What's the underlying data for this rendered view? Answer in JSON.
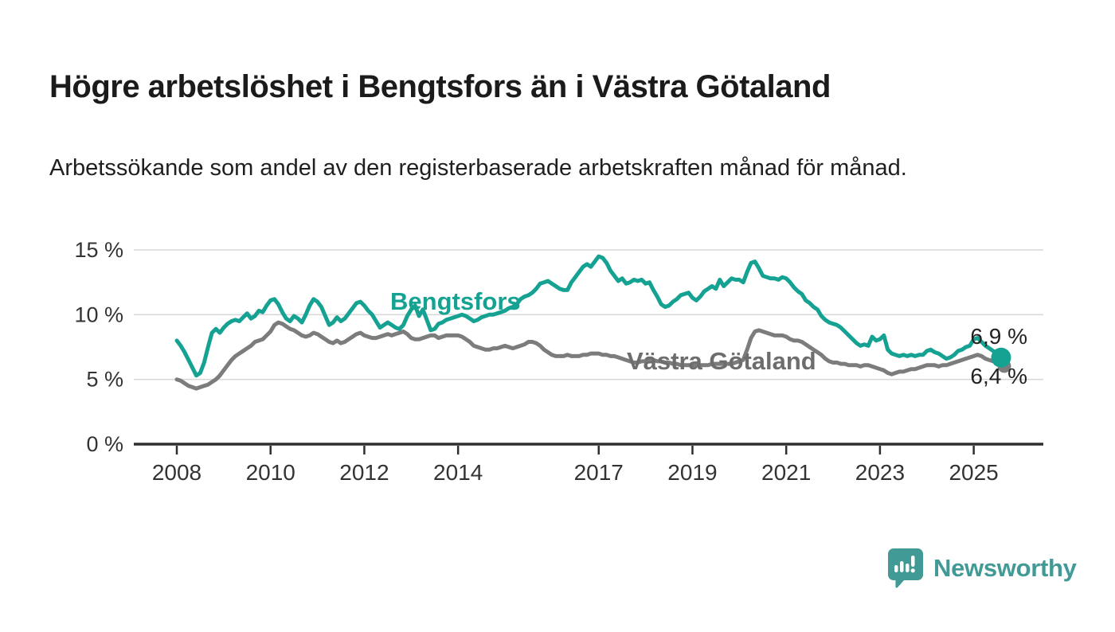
{
  "header": {
    "title": "Högre arbetslöshet i Bengtsfors än i Västra Götaland",
    "subtitle": "Arbetssökande som andel av den registerbaserade arbetskraften månad för månad."
  },
  "chart_data": {
    "type": "line",
    "title": "Högre arbetslöshet i Bengtsfors än i Västra Götaland",
    "subtitle": "Arbetssökande som andel av den registerbaserade arbetskraften månad för månad.",
    "unit": "%",
    "frequency": "monthly",
    "x_start": "2008-01",
    "x_end": "2025-08",
    "ylim": [
      0,
      15
    ],
    "grid": "horizontal",
    "x_tick_years": [
      "2008",
      "2010",
      "2012",
      "2014",
      "2017",
      "2019",
      "2021",
      "2023",
      "2025"
    ],
    "y_ticks": [
      {
        "value": 0,
        "label": "0 %"
      },
      {
        "value": 5,
        "label": "5 %"
      },
      {
        "value": 10,
        "label": "10 %"
      },
      {
        "value": 15,
        "label": "15 %"
      }
    ],
    "series": [
      {
        "name": "Bengtsfors",
        "color": "#15a292",
        "end_label": "6,9 %",
        "end_value": 6.9,
        "values": [
          8.0,
          7.6,
          7.1,
          6.5,
          5.9,
          5.3,
          5.5,
          6.3,
          7.5,
          8.6,
          8.9,
          8.6,
          9.0,
          9.3,
          9.5,
          9.6,
          9.5,
          9.8,
          10.1,
          9.7,
          9.9,
          10.3,
          10.2,
          10.7,
          11.1,
          11.2,
          10.8,
          10.2,
          9.7,
          9.5,
          9.9,
          9.7,
          9.4,
          10.0,
          10.7,
          11.2,
          11.0,
          10.6,
          9.9,
          9.2,
          9.4,
          9.8,
          9.5,
          9.7,
          10.1,
          10.5,
          10.9,
          11.0,
          10.7,
          10.3,
          10.0,
          9.5,
          9.0,
          9.2,
          9.4,
          9.2,
          9.0,
          8.9,
          9.2,
          9.9,
          10.4,
          10.7,
          9.9,
          10.4,
          9.6,
          8.8,
          8.9,
          9.3,
          9.4,
          9.6,
          9.7,
          9.8,
          9.9,
          10.0,
          9.9,
          9.7,
          9.5,
          9.6,
          9.8,
          9.9,
          10.0,
          10.0,
          10.1,
          10.2,
          10.3,
          10.5,
          10.6,
          10.8,
          11.2,
          11.4,
          11.5,
          11.7,
          12.0,
          12.4,
          12.5,
          12.6,
          12.4,
          12.2,
          12.0,
          11.9,
          11.9,
          12.5,
          12.9,
          13.3,
          13.7,
          13.9,
          13.7,
          14.1,
          14.5,
          14.4,
          14.0,
          13.4,
          13.0,
          12.6,
          12.8,
          12.4,
          12.5,
          12.7,
          12.6,
          12.7,
          12.4,
          12.5,
          11.9,
          11.4,
          10.8,
          10.6,
          10.7,
          11.0,
          11.2,
          11.5,
          11.6,
          11.7,
          11.3,
          11.1,
          11.4,
          11.8,
          12.0,
          12.2,
          12.0,
          12.7,
          12.2,
          12.5,
          12.8,
          12.7,
          12.7,
          12.5,
          13.3,
          14.0,
          14.1,
          13.6,
          13.0,
          12.9,
          12.8,
          12.8,
          12.7,
          12.9,
          12.8,
          12.5,
          12.1,
          11.8,
          11.6,
          11.1,
          10.9,
          10.6,
          10.4,
          9.9,
          9.6,
          9.4,
          9.3,
          9.2,
          9.0,
          8.7,
          8.4,
          8.1,
          7.8,
          7.6,
          7.7,
          7.6,
          8.3,
          8.0,
          8.1,
          8.4,
          7.3,
          7.0,
          6.9,
          6.8,
          6.9,
          6.8,
          6.9,
          6.8,
          6.9,
          6.9,
          7.2,
          7.3,
          7.1,
          7.0,
          6.8,
          6.6,
          6.7,
          6.9,
          7.2,
          7.3,
          7.5,
          7.6,
          8.1,
          8.2,
          7.9,
          7.6,
          7.4,
          7.2,
          7.0,
          6.9
        ]
      },
      {
        "name": "Västra Götaland",
        "color": "#7c7c7c",
        "end_label": "6,4 %",
        "end_value": 6.4,
        "values": [
          5.0,
          4.9,
          4.7,
          4.5,
          4.4,
          4.3,
          4.4,
          4.5,
          4.6,
          4.8,
          5.0,
          5.3,
          5.7,
          6.1,
          6.5,
          6.8,
          7.0,
          7.2,
          7.4,
          7.6,
          7.9,
          8.0,
          8.1,
          8.4,
          8.7,
          9.2,
          9.4,
          9.3,
          9.1,
          8.9,
          8.8,
          8.6,
          8.4,
          8.3,
          8.4,
          8.6,
          8.5,
          8.3,
          8.1,
          7.9,
          7.8,
          8.0,
          7.8,
          7.9,
          8.1,
          8.3,
          8.5,
          8.6,
          8.4,
          8.3,
          8.2,
          8.2,
          8.3,
          8.4,
          8.5,
          8.4,
          8.5,
          8.6,
          8.7,
          8.5,
          8.2,
          8.1,
          8.1,
          8.2,
          8.3,
          8.4,
          8.4,
          8.2,
          8.3,
          8.4,
          8.4,
          8.4,
          8.4,
          8.3,
          8.1,
          7.9,
          7.6,
          7.5,
          7.4,
          7.3,
          7.3,
          7.4,
          7.4,
          7.5,
          7.6,
          7.5,
          7.4,
          7.5,
          7.6,
          7.7,
          7.9,
          7.9,
          7.8,
          7.6,
          7.3,
          7.1,
          6.9,
          6.8,
          6.8,
          6.8,
          6.9,
          6.8,
          6.8,
          6.8,
          6.9,
          6.9,
          7.0,
          7.0,
          7.0,
          6.9,
          6.9,
          6.8,
          6.8,
          6.7,
          6.6,
          6.5,
          6.4,
          6.3,
          6.3,
          6.4,
          6.4,
          6.5,
          6.5,
          6.4,
          6.4,
          6.3,
          6.3,
          6.2,
          6.2,
          6.1,
          6.1,
          6.1,
          6.1,
          6.1,
          6.1,
          6.1,
          6.1,
          6.2,
          6.2,
          6.2,
          6.2,
          6.2,
          6.2,
          6.3,
          6.4,
          6.5,
          7.3,
          8.2,
          8.7,
          8.8,
          8.7,
          8.6,
          8.5,
          8.4,
          8.4,
          8.4,
          8.3,
          8.1,
          8.0,
          8.0,
          7.9,
          7.7,
          7.5,
          7.3,
          7.1,
          6.9,
          6.6,
          6.4,
          6.3,
          6.3,
          6.2,
          6.2,
          6.1,
          6.1,
          6.1,
          6.0,
          6.1,
          6.1,
          6.0,
          5.9,
          5.8,
          5.7,
          5.5,
          5.4,
          5.5,
          5.6,
          5.6,
          5.7,
          5.8,
          5.8,
          5.9,
          6.0,
          6.1,
          6.1,
          6.1,
          6.0,
          6.1,
          6.1,
          6.2,
          6.3,
          6.4,
          6.5,
          6.6,
          6.7,
          6.8,
          6.9,
          6.8,
          6.6,
          6.5,
          6.4,
          6.4,
          6.4
        ]
      }
    ],
    "legend_position": "inline-labels"
  },
  "footer": {
    "brand": "Newsworthy"
  },
  "colors": {
    "accent_teal": "#15a292",
    "series_gray": "#7c7c7c",
    "series_gray_label": "#6d6d6d",
    "gridline": "#d8d8d8",
    "axis_line": "#2e2e2e",
    "axis_text": "#333333",
    "value_label_text": "#222222",
    "brand_teal": "#419a95"
  }
}
